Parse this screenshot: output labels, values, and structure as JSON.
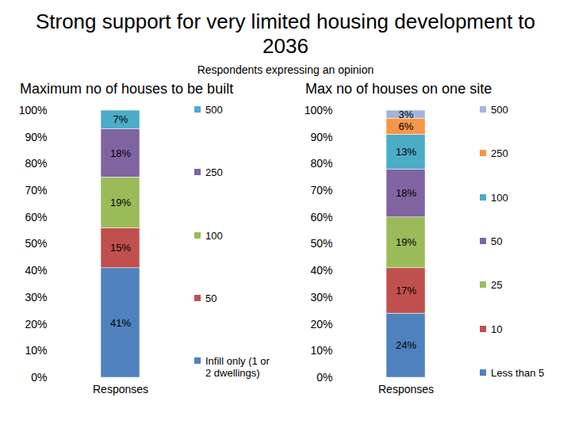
{
  "title": "Strong support for very limited housing development to 2036",
  "subtitle": "Respondents expressing an opinion",
  "chart_data": [
    {
      "type": "bar",
      "title": "Maximum no of houses to be built",
      "categories": [
        "Responses"
      ],
      "series": [
        {
          "name": "Infill only (1 or 2 dwellings)",
          "color": "#4f81bd",
          "values": [
            41
          ],
          "value_labels": [
            "41%"
          ]
        },
        {
          "name": "50",
          "color": "#c0504d",
          "values": [
            15
          ],
          "value_labels": [
            "15%"
          ]
        },
        {
          "name": "100",
          "color": "#9bbb59",
          "values": [
            19
          ],
          "value_labels": [
            "19%"
          ]
        },
        {
          "name": "250",
          "color": "#8064a2",
          "values": [
            18
          ],
          "value_labels": [
            "18%"
          ]
        },
        {
          "name": "500",
          "color": "#4bacc6",
          "values": [
            7
          ],
          "value_labels": [
            "7%"
          ]
        }
      ],
      "stacked": true,
      "data_labels": true,
      "legend": "right",
      "ylim": [
        0,
        100
      ],
      "yticks": [
        {
          "value": 0,
          "label": "0%"
        },
        {
          "value": 10,
          "label": "10%"
        },
        {
          "value": 20,
          "label": "20%"
        },
        {
          "value": 30,
          "label": "30%"
        },
        {
          "value": 40,
          "label": "40%"
        },
        {
          "value": 50,
          "label": "50%"
        },
        {
          "value": 60,
          "label": "60%"
        },
        {
          "value": 70,
          "label": "70%"
        },
        {
          "value": 80,
          "label": "80%"
        },
        {
          "value": 90,
          "label": "90%"
        },
        {
          "value": 100,
          "label": "100%"
        }
      ]
    },
    {
      "type": "bar",
      "title": "Max no of houses on one site",
      "categories": [
        "Responses"
      ],
      "series": [
        {
          "name": "Less than 5",
          "color": "#4f81bd",
          "values": [
            24
          ],
          "value_labels": [
            "24%"
          ]
        },
        {
          "name": "10",
          "color": "#c0504d",
          "values": [
            17
          ],
          "value_labels": [
            "17%"
          ]
        },
        {
          "name": "25",
          "color": "#9bbb59",
          "values": [
            19
          ],
          "value_labels": [
            "19%"
          ]
        },
        {
          "name": "50",
          "color": "#8064a2",
          "values": [
            18
          ],
          "value_labels": [
            "18%"
          ]
        },
        {
          "name": "100",
          "color": "#4bacc6",
          "values": [
            13
          ],
          "value_labels": [
            "13%"
          ]
        },
        {
          "name": "250",
          "color": "#f79646",
          "values": [
            6
          ],
          "value_labels": [
            "6%"
          ]
        },
        {
          "name": "500",
          "color": "#a5b5d9",
          "values": [
            3
          ],
          "value_labels": [
            "3%"
          ]
        }
      ],
      "stacked": true,
      "data_labels": true,
      "legend": "right",
      "ylim": [
        0,
        100
      ],
      "yticks": [
        {
          "value": 0,
          "label": "0%"
        },
        {
          "value": 10,
          "label": "10%"
        },
        {
          "value": 20,
          "label": "20%"
        },
        {
          "value": 30,
          "label": "30%"
        },
        {
          "value": 40,
          "label": "40%"
        },
        {
          "value": 50,
          "label": "50%"
        },
        {
          "value": 60,
          "label": "60%"
        },
        {
          "value": 70,
          "label": "70%"
        },
        {
          "value": 80,
          "label": "80%"
        },
        {
          "value": 90,
          "label": "90%"
        },
        {
          "value": 100,
          "label": "100%"
        }
      ]
    }
  ]
}
